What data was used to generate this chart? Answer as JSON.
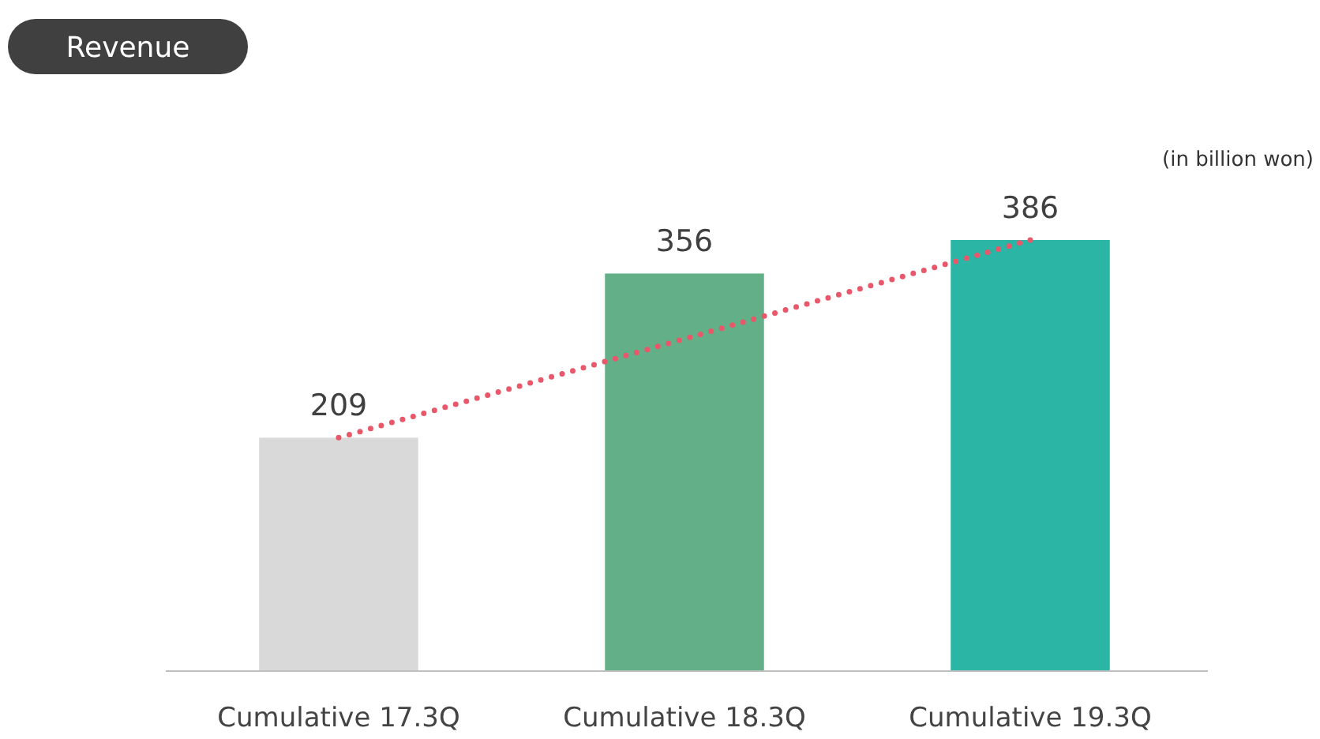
{
  "chart_data": {
    "type": "bar",
    "title": "Revenue",
    "annotations": [
      "(in billion won)"
    ],
    "categories": [
      "Cumulative 17.3Q",
      "Cumulative 18.3Q",
      "Cumulative 19.3Q"
    ],
    "tick_labels": "x",
    "series": [
      {
        "colors": [
          "#d9d9d9",
          "#63b088",
          "#2bb5a5"
        ],
        "values": [
          209,
          356,
          386
        ],
        "value_labels": [
          "209",
          "356",
          "386"
        ]
      },
      {
        "type": "line",
        "color": "#e8586a",
        "line_style": "dotted",
        "marker": "none",
        "values": [
          209,
          null,
          386
        ]
      }
    ]
  }
}
